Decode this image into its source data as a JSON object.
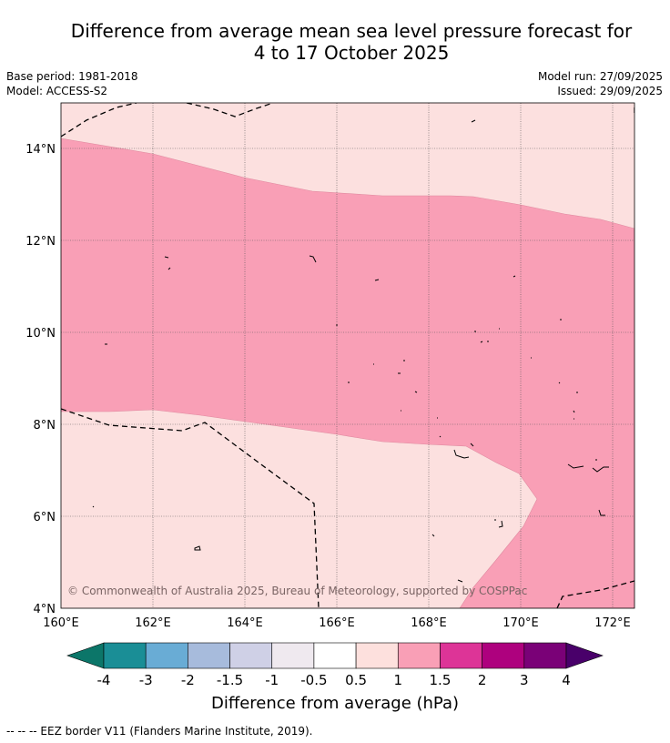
{
  "title": {
    "line1": "Difference from average mean sea level pressure forecast for",
    "line2": "4 to 17 October 2025"
  },
  "meta": {
    "base_period": "Base period: 1981-2018",
    "model": "Model: ACCESS-S2",
    "model_run": "Model run: 27/09/2025",
    "issued": "Issued: 29/09/2025"
  },
  "map": {
    "lon_labels": [
      "160°E",
      "162°E",
      "164°E",
      "166°E",
      "168°E",
      "170°E",
      "172°E"
    ],
    "lat_labels": [
      "14°N",
      "12°N",
      "10°N",
      "8°N",
      "6°N",
      "4°N"
    ],
    "copyright": "© Commonwealth of Australia 2025, Bureau of Meteorology, supported by COSPPac",
    "fill_colors": {
      "light": "#fce0df",
      "mid": "#f99fb6"
    }
  },
  "legend": {
    "ticks": [
      "-4",
      "-3",
      "-2",
      "-1.5",
      "-1",
      "-0.5",
      "0.5",
      "1",
      "1.5",
      "2",
      "3",
      "4"
    ],
    "colors": [
      "#0c7669",
      "#1a8e96",
      "#69acd5",
      "#a7bbdc",
      "#cfd0e6",
      "#efe9ef",
      "#ffffff",
      "#fde0dd",
      "#f99fb6",
      "#dd3497",
      "#ae017e",
      "#7a0177",
      "#49006a"
    ],
    "label": "Difference from average (hPa)"
  },
  "footnote": "-- -- -- EEZ border V11 (Flanders Marine Institute, 2019)."
}
